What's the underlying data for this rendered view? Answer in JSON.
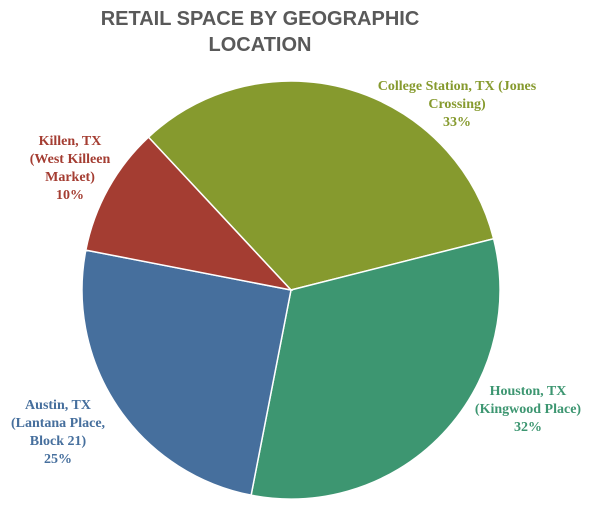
{
  "chart_data": {
    "type": "pie",
    "title": "RETAIL SPACE BY GEOGRAPHIC LOCATION",
    "categories": [
      "College Station, TX (Jones Crossing)",
      "Houston, TX (Kingwood Place)",
      "Austin, TX (Lantana Place, Block 21)",
      "Killen, TX (West Killeen Market)"
    ],
    "values": [
      33,
      32,
      25,
      10
    ],
    "value_labels": [
      "33%",
      "32%",
      "25%",
      "10%"
    ],
    "colors": [
      "#869a2e",
      "#3d9671",
      "#466f9d",
      "#a43d32"
    ]
  }
}
